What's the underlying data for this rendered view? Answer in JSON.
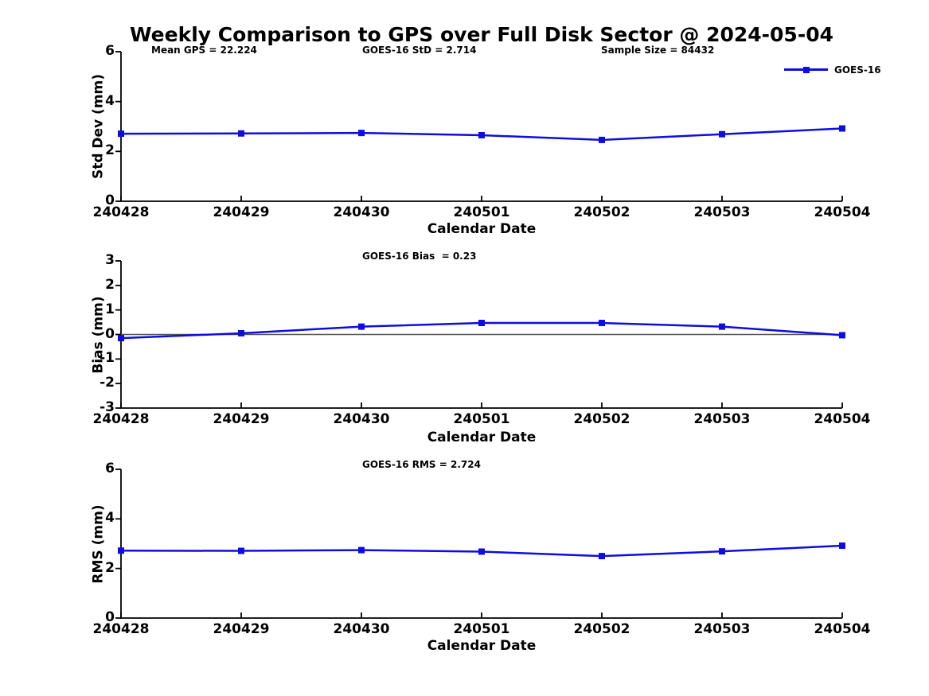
{
  "title": "Weekly Comparison to GPS over Full Disk Sector @ 2024-05-04",
  "colors": {
    "line": "#0d0de0",
    "axis": "#000000",
    "zero_line": "#555555",
    "text": "#000000",
    "background": "#ffffff"
  },
  "legend": {
    "label": "GOES-16"
  },
  "stats": {
    "mean_gps": 22.224,
    "goes16_std": 2.714,
    "sample_size": 84432,
    "goes16_bias": 0.23,
    "goes16_rms": 2.724
  },
  "chart_data": [
    {
      "type": "line",
      "name": "std-dev",
      "ylabel": "Std Dev (mm)",
      "xlabel": "Calendar Date",
      "x": [
        "240428",
        "240429",
        "240430",
        "240501",
        "240502",
        "240503",
        "240504"
      ],
      "series": [
        {
          "name": "GOES-16",
          "values": [
            2.71,
            2.72,
            2.74,
            2.65,
            2.46,
            2.69,
            2.92
          ]
        }
      ],
      "ylim": [
        0,
        6
      ],
      "yticks": [
        "0",
        "2",
        "4",
        "6"
      ],
      "grid": false,
      "zero_line": false,
      "legend_position": "top-right",
      "annotations": [
        "Mean GPS = 22.224",
        "GOES-16 StD = 2.714",
        "Sample Size = 84432"
      ]
    },
    {
      "type": "line",
      "name": "bias",
      "ylabel": "Bias (mm)",
      "xlabel": "Calendar Date",
      "x": [
        "240428",
        "240429",
        "240430",
        "240501",
        "240502",
        "240503",
        "240504"
      ],
      "series": [
        {
          "name": "GOES-16",
          "values": [
            -0.15,
            0.05,
            0.32,
            0.47,
            0.47,
            0.32,
            -0.03
          ]
        }
      ],
      "ylim": [
        -3,
        3
      ],
      "yticks": [
        "-3",
        "-2",
        "-1",
        "0",
        "1",
        "2",
        "3"
      ],
      "grid": false,
      "zero_line": true,
      "legend_position": "none",
      "annotations": [
        "GOES-16 Bias  = 0.23"
      ]
    },
    {
      "type": "line",
      "name": "rms",
      "ylabel": "RMS (mm)",
      "xlabel": "Calendar Date",
      "x": [
        "240428",
        "240429",
        "240430",
        "240501",
        "240502",
        "240503",
        "240504"
      ],
      "series": [
        {
          "name": "GOES-16",
          "values": [
            2.72,
            2.71,
            2.74,
            2.68,
            2.5,
            2.69,
            2.92
          ]
        }
      ],
      "ylim": [
        0,
        6
      ],
      "yticks": [
        "0",
        "2",
        "4",
        "6"
      ],
      "grid": false,
      "zero_line": false,
      "legend_position": "none",
      "annotations": [
        "GOES-16 RMS = 2.724"
      ]
    }
  ]
}
